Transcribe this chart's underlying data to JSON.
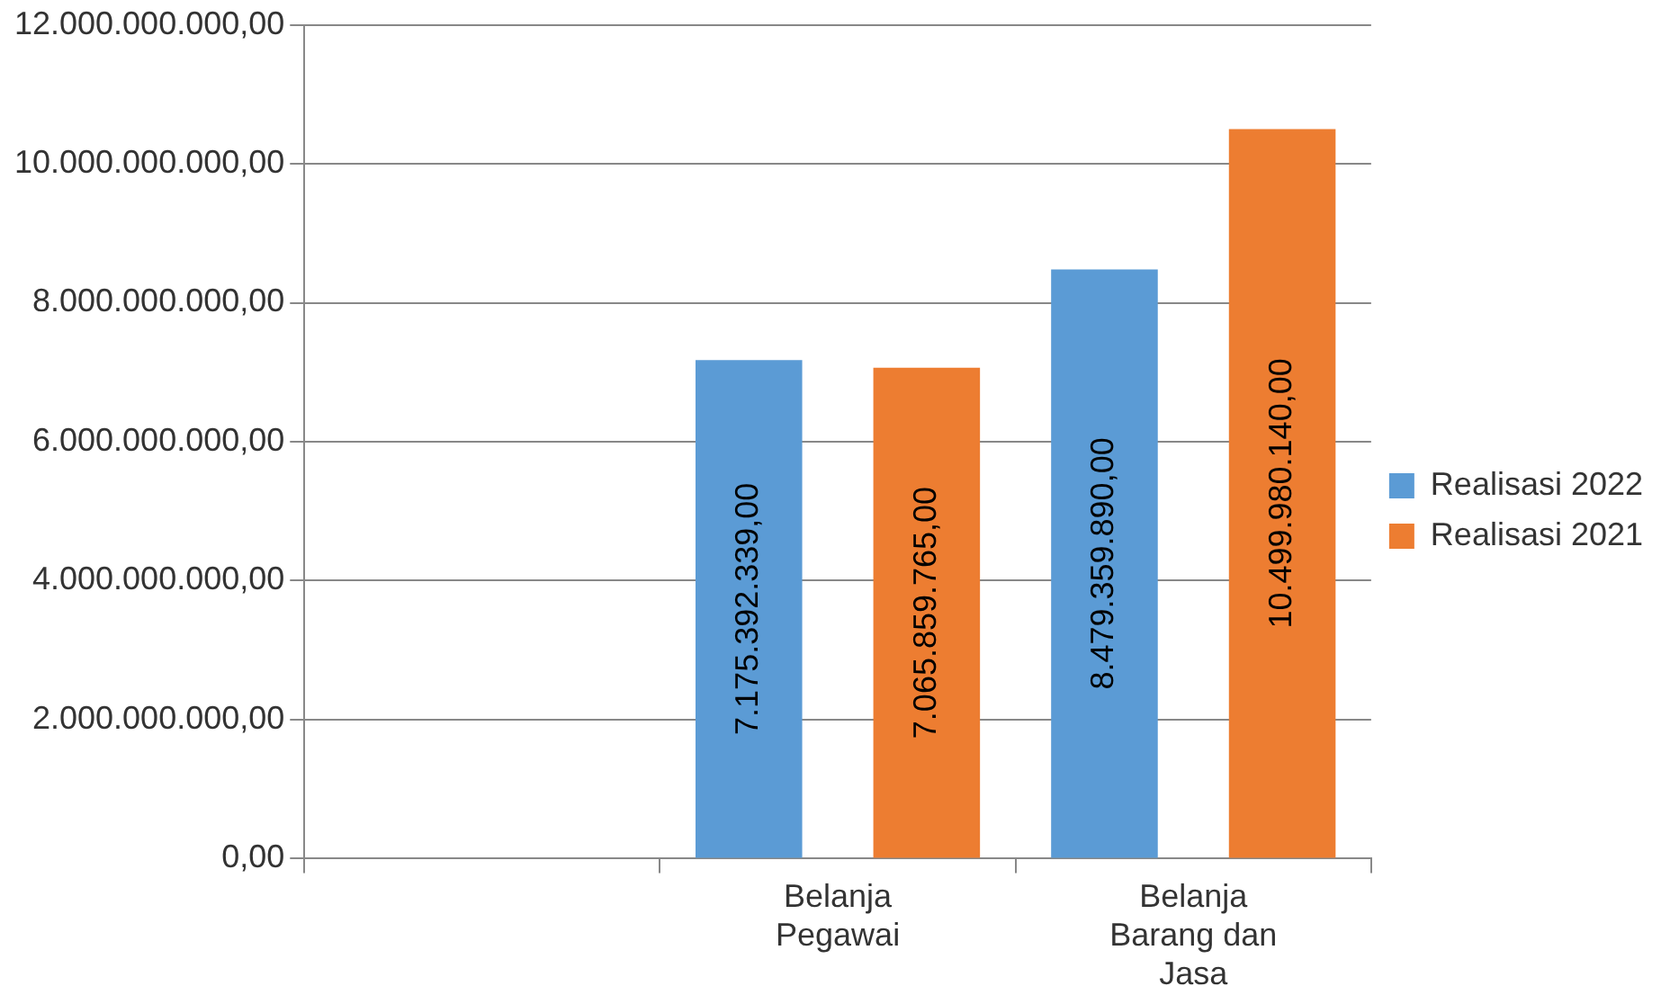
{
  "chart_data": {
    "type": "bar",
    "categories": [
      null,
      "Belanja Pegawai",
      "Belanja Barang dan Jasa"
    ],
    "series": [
      {
        "name": "Realisasi 2022",
        "color": "#5b9bd5",
        "values": [
          null,
          7175392339,
          8479359890
        ],
        "value_labels": [
          null,
          "7.175.392.339,00",
          "8.479.359.890,00"
        ]
      },
      {
        "name": "Realisasi 2021",
        "color": "#ed7d31",
        "values": [
          null,
          7065859765,
          10499980140
        ],
        "value_labels": [
          null,
          "7.065.859.765,00",
          "10.499.980.140,00"
        ]
      }
    ],
    "ylim": [
      0,
      12000000000
    ],
    "yticks": [
      {
        "value": 0,
        "label": "0,00"
      },
      {
        "value": 2000000000,
        "label": "2.000.000.000,00"
      },
      {
        "value": 4000000000,
        "label": "4.000.000.000,00"
      },
      {
        "value": 6000000000,
        "label": "6.000.000.000,00"
      },
      {
        "value": 8000000000,
        "label": "8.000.000.000,00"
      },
      {
        "value": 10000000000,
        "label": "10.000.000.000,00"
      },
      {
        "value": 12000000000,
        "label": "12.000.000.000,00"
      }
    ],
    "grid": "y",
    "legend": "right"
  }
}
